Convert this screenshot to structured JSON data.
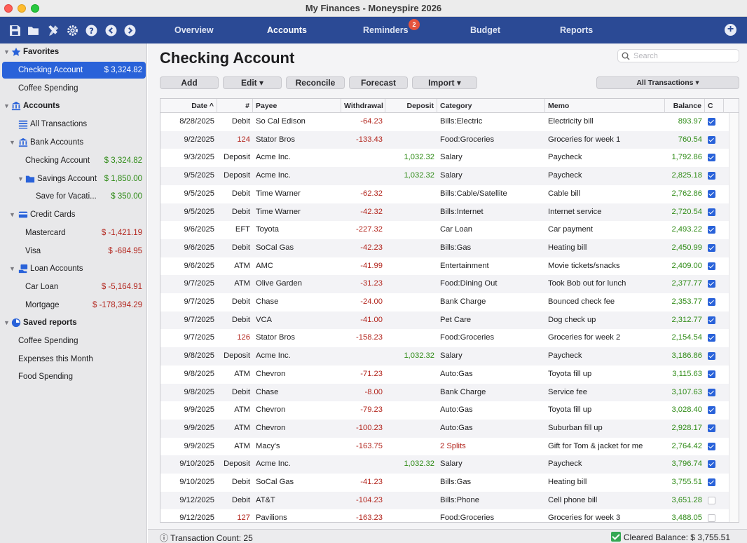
{
  "window": {
    "title": "My Finances - Moneyspire 2026"
  },
  "toolbar": {
    "icons": [
      "save-icon",
      "folder-icon",
      "tools-icon",
      "gear-icon",
      "help-icon",
      "back-icon",
      "forward-icon"
    ],
    "tabs": [
      {
        "label": "Overview"
      },
      {
        "label": "Accounts",
        "active": true
      },
      {
        "label": "Reminders",
        "badge": "2"
      },
      {
        "label": "Budget"
      },
      {
        "label": "Reports"
      }
    ]
  },
  "sidebar": {
    "favorites_header": "Favorites",
    "favorites": [
      {
        "label": "Checking Account",
        "amount": "$ 3,324.82"
      },
      {
        "label": "Coffee Spending"
      }
    ],
    "accounts_header": "Accounts",
    "all_transactions": "All Transactions",
    "bank_header": "Bank Accounts",
    "bank": [
      {
        "label": "Checking Account",
        "amount": "$ 3,324.82"
      },
      {
        "label": "Savings Account",
        "amount": "$ 1,850.00"
      },
      {
        "label": "Save for Vacati...",
        "amount": "$ 350.00"
      }
    ],
    "credit_header": "Credit Cards",
    "credit": [
      {
        "label": "Mastercard",
        "amount": "$ -1,421.19"
      },
      {
        "label": "Visa",
        "amount": "$ -684.95"
      }
    ],
    "loan_header": "Loan Accounts",
    "loan": [
      {
        "label": "Car Loan",
        "amount": "$ -5,164.91"
      },
      {
        "label": "Mortgage",
        "amount": "$ -178,394.29"
      }
    ],
    "reports_header": "Saved reports",
    "reports": [
      {
        "label": "Coffee Spending"
      },
      {
        "label": "Expenses this Month"
      },
      {
        "label": "Food Spending"
      }
    ]
  },
  "main": {
    "title": "Checking Account",
    "search_placeholder": "Search",
    "buttons": {
      "add": "Add",
      "edit": "Edit ▾",
      "reconcile": "Reconcile",
      "forecast": "Forecast",
      "import": "Import ▾",
      "filter": "All Transactions ▾"
    },
    "columns": {
      "date": "Date ^",
      "num": "#",
      "payee": "Payee",
      "withdrawal": "Withdrawal",
      "deposit": "Deposit",
      "category": "Category",
      "memo": "Memo",
      "balance": "Balance",
      "cleared": "C"
    },
    "rows": [
      {
        "date": "8/28/2025",
        "num": "Debit",
        "payee": "So Cal Edison",
        "withdrawal": "-64.23",
        "deposit": "",
        "category": "Bills:Electric",
        "memo": "Electricity bill",
        "balance": "893.97",
        "cleared": true
      },
      {
        "date": "9/2/2025",
        "num": "124",
        "payee": "Stator Bros",
        "withdrawal": "-133.43",
        "deposit": "",
        "category": "Food:Groceries",
        "memo": "Groceries for week 1",
        "balance": "760.54",
        "cleared": true
      },
      {
        "date": "9/3/2025",
        "num": "Deposit",
        "payee": "Acme Inc.",
        "withdrawal": "",
        "deposit": "1,032.32",
        "category": "Salary",
        "memo": "Paycheck",
        "balance": "1,792.86",
        "cleared": true
      },
      {
        "date": "9/5/2025",
        "num": "Deposit",
        "payee": "Acme Inc.",
        "withdrawal": "",
        "deposit": "1,032.32",
        "category": "Salary",
        "memo": "Paycheck",
        "balance": "2,825.18",
        "cleared": true
      },
      {
        "date": "9/5/2025",
        "num": "Debit",
        "payee": "Time Warner",
        "withdrawal": "-62.32",
        "deposit": "",
        "category": "Bills:Cable/Satellite",
        "memo": "Cable bill",
        "balance": "2,762.86",
        "cleared": true
      },
      {
        "date": "9/5/2025",
        "num": "Debit",
        "payee": "Time Warner",
        "withdrawal": "-42.32",
        "deposit": "",
        "category": "Bills:Internet",
        "memo": "Internet service",
        "balance": "2,720.54",
        "cleared": true
      },
      {
        "date": "9/6/2025",
        "num": "EFT",
        "payee": "Toyota",
        "withdrawal": "-227.32",
        "deposit": "",
        "category": "Car Loan",
        "memo": "Car payment",
        "balance": "2,493.22",
        "cleared": true
      },
      {
        "date": "9/6/2025",
        "num": "Debit",
        "payee": "SoCal Gas",
        "withdrawal": "-42.23",
        "deposit": "",
        "category": "Bills:Gas",
        "memo": "Heating bill",
        "balance": "2,450.99",
        "cleared": true
      },
      {
        "date": "9/6/2025",
        "num": "ATM",
        "payee": "AMC",
        "withdrawal": "-41.99",
        "deposit": "",
        "category": "Entertainment",
        "memo": "Movie tickets/snacks",
        "balance": "2,409.00",
        "cleared": true
      },
      {
        "date": "9/7/2025",
        "num": "ATM",
        "payee": "Olive Garden",
        "withdrawal": "-31.23",
        "deposit": "",
        "category": "Food:Dining Out",
        "memo": "Took Bob out for lunch",
        "balance": "2,377.77",
        "cleared": true
      },
      {
        "date": "9/7/2025",
        "num": "Debit",
        "payee": "Chase",
        "withdrawal": "-24.00",
        "deposit": "",
        "category": "Bank Charge",
        "memo": "Bounced check fee",
        "balance": "2,353.77",
        "cleared": true
      },
      {
        "date": "9/7/2025",
        "num": "Debit",
        "payee": "VCA",
        "withdrawal": "-41.00",
        "deposit": "",
        "category": "Pet Care",
        "memo": "Dog check up",
        "balance": "2,312.77",
        "cleared": true
      },
      {
        "date": "9/7/2025",
        "num": "126",
        "payee": "Stator Bros",
        "withdrawal": "-158.23",
        "deposit": "",
        "category": "Food:Groceries",
        "memo": "Groceries for week 2",
        "balance": "2,154.54",
        "cleared": true
      },
      {
        "date": "9/8/2025",
        "num": "Deposit",
        "payee": "Acme Inc.",
        "withdrawal": "",
        "deposit": "1,032.32",
        "category": "Salary",
        "memo": "Paycheck",
        "balance": "3,186.86",
        "cleared": true
      },
      {
        "date": "9/8/2025",
        "num": "ATM",
        "payee": "Chevron",
        "withdrawal": "-71.23",
        "deposit": "",
        "category": "Auto:Gas",
        "memo": "Toyota fill up",
        "balance": "3,115.63",
        "cleared": true
      },
      {
        "date": "9/8/2025",
        "num": "Debit",
        "payee": "Chase",
        "withdrawal": "-8.00",
        "deposit": "",
        "category": "Bank Charge",
        "memo": "Service fee",
        "balance": "3,107.63",
        "cleared": true
      },
      {
        "date": "9/9/2025",
        "num": "ATM",
        "payee": "Chevron",
        "withdrawal": "-79.23",
        "deposit": "",
        "category": "Auto:Gas",
        "memo": "Toyota fill up",
        "balance": "3,028.40",
        "cleared": true
      },
      {
        "date": "9/9/2025",
        "num": "ATM",
        "payee": "Chevron",
        "withdrawal": "-100.23",
        "deposit": "",
        "category": "Auto:Gas",
        "memo": "Suburban fill up",
        "balance": "2,928.17",
        "cleared": true
      },
      {
        "date": "9/9/2025",
        "num": "ATM",
        "payee": "Macy's",
        "withdrawal": "-163.75",
        "deposit": "",
        "category": "2 Splits",
        "memo": "Gift for Tom & jacket for me",
        "balance": "2,764.42",
        "cleared": true
      },
      {
        "date": "9/10/2025",
        "num": "Deposit",
        "payee": "Acme Inc.",
        "withdrawal": "",
        "deposit": "1,032.32",
        "category": "Salary",
        "memo": "Paycheck",
        "balance": "3,796.74",
        "cleared": true
      },
      {
        "date": "9/10/2025",
        "num": "Debit",
        "payee": "SoCal Gas",
        "withdrawal": "-41.23",
        "deposit": "",
        "category": "Bills:Gas",
        "memo": "Heating bill",
        "balance": "3,755.51",
        "cleared": true
      },
      {
        "date": "9/12/2025",
        "num": "Debit",
        "payee": "AT&T",
        "withdrawal": "-104.23",
        "deposit": "",
        "category": "Bills:Phone",
        "memo": "Cell phone bill",
        "balance": "3,651.28",
        "cleared": false
      },
      {
        "date": "9/12/2025",
        "num": "127",
        "payee": "Pavilions",
        "withdrawal": "-163.23",
        "deposit": "",
        "category": "Food:Groceries",
        "memo": "Groceries for week 3",
        "balance": "3,488.05",
        "cleared": false
      }
    ]
  },
  "status": {
    "count": "ⓘ Transaction Count: 25",
    "cleared": "Cleared Balance: $ 3,755.51"
  },
  "colors": {
    "toolbar": "#2b4a95",
    "selection": "#2962d9",
    "positive": "#2e8b16",
    "negative": "#b3261e",
    "badge": "#e5533d"
  }
}
